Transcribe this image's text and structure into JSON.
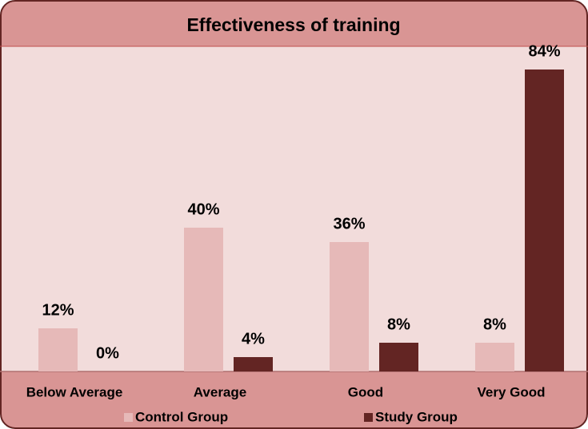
{
  "chart_data": {
    "type": "bar",
    "title": "Effectiveness of training",
    "categories": [
      "Below Average",
      "Average",
      "Good",
      "Very Good"
    ],
    "series": [
      {
        "name": "Control Group",
        "color": "#e6b9b8",
        "values": [
          12,
          40,
          36,
          8
        ],
        "value_labels": [
          "12%",
          "40%",
          "36%",
          "8%"
        ]
      },
      {
        "name": "Study Group",
        "color": "#632523",
        "values": [
          0,
          4,
          8,
          84
        ],
        "value_labels": [
          "0%",
          "4%",
          "8%",
          "84%"
        ]
      }
    ],
    "legend": "bottom"
  }
}
